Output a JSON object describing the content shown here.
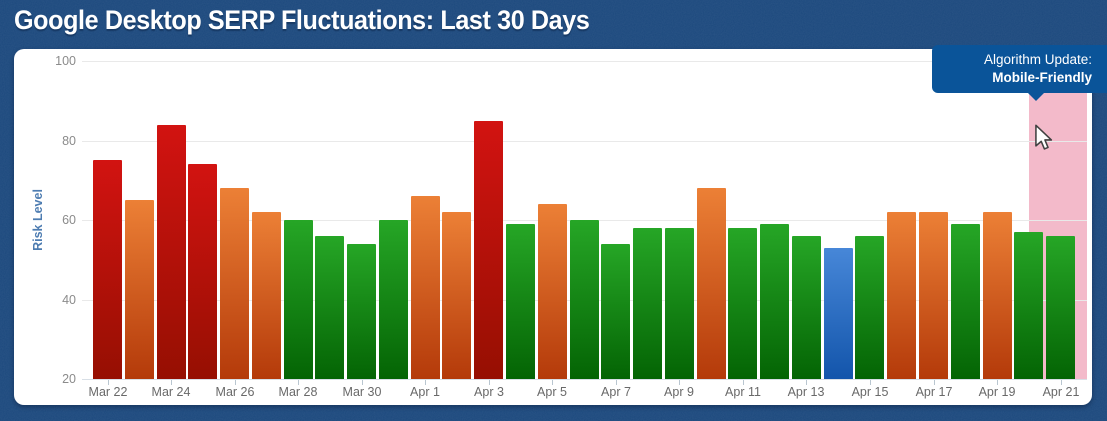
{
  "header": {
    "title": "Google Desktop SERP Fluctuations: Last 30 Days"
  },
  "tooltip": {
    "line1": "Algorithm Update:",
    "line2": "Mobile-Friendly"
  },
  "y_axis": {
    "label": "Risk Level"
  },
  "colors": {
    "background": "#1b487d",
    "panel": "#ffffff",
    "tooltip_bg": "#0a5499",
    "highlight_pink": "rgba(238,160,181,0.72)",
    "grid_line": "#e9e9e9",
    "axis_line": "#d8dfe6",
    "x_tick": "#b9c6d0",
    "y_tick_text": "#8b8b8b",
    "x_tick_text": "#696969",
    "y_axis_title_text": "#4d7cb1"
  },
  "chart_data": {
    "type": "bar",
    "title": "Google Desktop SERP Fluctuations: Last 30 Days",
    "xlabel": "",
    "ylabel": "Risk Level",
    "ylim": [
      20,
      100
    ],
    "yticks": [
      100,
      80,
      60,
      40,
      20
    ],
    "grid": true,
    "legend": false,
    "categories": [
      "Mar 22",
      "Mar 23",
      "Mar 24",
      "Mar 25",
      "Mar 26",
      "Mar 27",
      "Mar 28",
      "Mar 29",
      "Mar 30",
      "Mar 31",
      "Apr 1",
      "Apr 2",
      "Apr 3",
      "Apr 4",
      "Apr 5",
      "Apr 6",
      "Apr 7",
      "Apr 8",
      "Apr 9",
      "Apr 10",
      "Apr 11",
      "Apr 12",
      "Apr 13",
      "Apr 14",
      "Apr 15",
      "Apr 16",
      "Apr 17",
      "Apr 18",
      "Apr 19",
      "Apr 20",
      "Apr 21"
    ],
    "values": [
      75,
      65,
      84,
      74,
      68,
      62,
      60,
      56,
      54,
      60,
      66,
      62,
      85,
      59,
      64,
      60,
      54,
      58,
      58,
      68,
      58,
      59,
      56,
      53,
      56,
      62,
      62,
      59,
      62,
      57,
      56
    ],
    "levels": [
      "red",
      "orange",
      "red",
      "red",
      "orange",
      "orange",
      "green",
      "green",
      "green",
      "green",
      "orange",
      "orange",
      "red",
      "green",
      "orange",
      "green",
      "green",
      "green",
      "green",
      "orange",
      "green",
      "green",
      "green",
      "blue",
      "green",
      "orange",
      "orange",
      "green",
      "orange",
      "green",
      "green"
    ],
    "level_colors": {
      "red": [
        "#d21311",
        "#960f02"
      ],
      "orange": [
        "#ec8036",
        "#b43a0a"
      ],
      "green": [
        "#26a626",
        "#046404"
      ],
      "blue": [
        "#4787d8",
        "#1355ab"
      ]
    },
    "x_tick_labels": [
      "Mar 22",
      "Mar 24",
      "Mar 26",
      "Mar 28",
      "Mar 30",
      "Apr 1",
      "Apr 3",
      "Apr 5",
      "Apr 7",
      "Apr 9",
      "Apr 11",
      "Apr 13",
      "Apr 15",
      "Apr 17",
      "Apr 19",
      "Apr 21"
    ],
    "highlight_region": {
      "categories": [
        "Apr 20",
        "Apr 21"
      ],
      "color": "rgba(238,160,181,0.72)",
      "annotation": "Algorithm Update: Mobile-Friendly"
    }
  }
}
